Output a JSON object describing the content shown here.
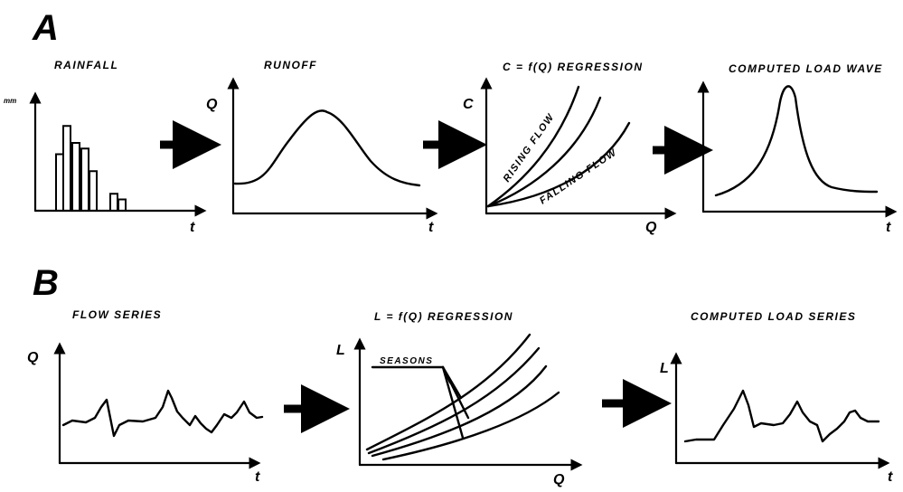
{
  "section_a": {
    "letter": "A",
    "rainfall": {
      "title": "RAINFALL",
      "y_axis": "mm",
      "x_axis": "t",
      "values": [
        0.5,
        0.75,
        0.6,
        0.55,
        0.35,
        0.15,
        0.1
      ]
    },
    "runoff": {
      "title": "RUNOFF",
      "y_axis": "Q",
      "x_axis": "t"
    },
    "regression": {
      "title": "C = f(Q) REGRESSION",
      "y_axis": "C",
      "x_axis": "Q",
      "curve_labels": [
        "RISING FLOW",
        "FALLING FLOW"
      ]
    },
    "load_wave": {
      "title": "COMPUTED LOAD WAVE",
      "y_axis": "",
      "x_axis": "t"
    }
  },
  "section_b": {
    "letter": "B",
    "flow_series": {
      "title": "FLOW SERIES",
      "y_axis": "Q",
      "x_axis": "t"
    },
    "regression": {
      "title": "L = f(Q) REGRESSION",
      "y_axis": "L",
      "x_axis": "Q",
      "annotation": "SEASONS"
    },
    "load_series": {
      "title": "COMPUTED LOAD SERIES",
      "y_axis": "L",
      "x_axis": "t"
    }
  },
  "colors": {
    "ink": "#000000",
    "background": "#ffffff"
  }
}
